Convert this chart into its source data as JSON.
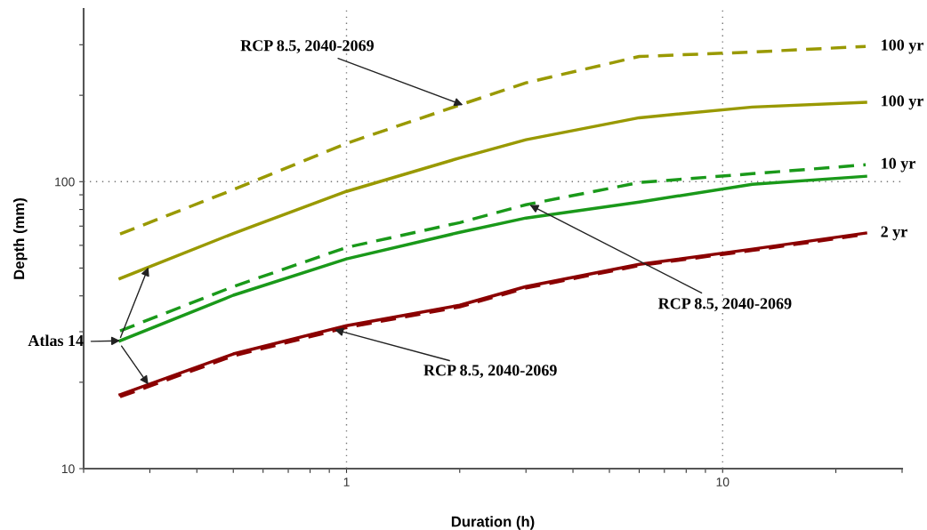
{
  "chart_data": {
    "type": "line",
    "xlabel": "Duration (h)",
    "ylabel": "Depth (mm)",
    "log": "xy",
    "grid": true,
    "x": [
      0.25,
      0.5,
      1,
      2,
      3,
      6,
      12,
      24
    ],
    "xlim": [
      0.2,
      30
    ],
    "xticks": [
      {
        "value": 0.2,
        "label": null
      },
      {
        "value": 0.3,
        "label": null
      },
      {
        "value": 0.4,
        "label": null
      },
      {
        "value": 0.5,
        "label": null
      },
      {
        "value": 0.6,
        "label": null
      },
      {
        "value": 0.7,
        "label": null
      },
      {
        "value": 0.8,
        "label": null
      },
      {
        "value": 0.9,
        "label": null
      },
      1,
      {
        "value": 2,
        "label": null
      },
      {
        "value": 3,
        "label": null
      },
      {
        "value": 4,
        "label": null
      },
      {
        "value": 5,
        "label": null
      },
      {
        "value": 6,
        "label": null
      },
      {
        "value": 7,
        "label": null
      },
      {
        "value": 8,
        "label": null
      },
      {
        "value": 9,
        "label": null
      },
      10,
      {
        "value": 20,
        "label": null
      },
      {
        "value": 30,
        "label": null
      }
    ],
    "ylim": [
      10,
      400
    ],
    "yticks": [
      10,
      {
        "value": 20,
        "label": null
      },
      {
        "value": 30,
        "label": null
      },
      {
        "value": 40,
        "label": null
      },
      {
        "value": 50,
        "label": null
      },
      {
        "value": 60,
        "label": null
      },
      {
        "value": 70,
        "label": null
      },
      {
        "value": 80,
        "label": null
      },
      {
        "value": 90,
        "label": null
      },
      100,
      {
        "value": 200,
        "label": null
      },
      {
        "value": 300,
        "label": null
      }
    ],
    "series": [
      {
        "name": "100 yr",
        "color": "#999900",
        "line_style": "dashed",
        "values": [
          65.7,
          93.8,
          136,
          185,
          221,
          273,
          283,
          296
        ]
      },
      {
        "name": "100 yr",
        "color": "#999900",
        "line_style": "solid",
        "values": [
          46.0,
          66,
          92.5,
          121,
          140,
          167,
          182,
          189
        ]
      },
      {
        "name": "10 yr",
        "color": "#1a991a",
        "line_style": "dashed",
        "values": [
          30.2,
          43.1,
          59.0,
          72.0,
          83.1,
          99.3,
          106.6,
          114.5
        ]
      },
      {
        "color": "#1a991a",
        "line_style": "solid",
        "values": [
          27.9,
          40.2,
          53.8,
          66.6,
          74.7,
          84.9,
          97.9,
          104.4
        ]
      },
      {
        "color": "#8b0000",
        "line_style": "dashed",
        "values": [
          17.8,
          24.7,
          31.0,
          36.6,
          42.6,
          51.0,
          57.6,
          65.5
        ]
      },
      {
        "name": "2 yr",
        "color": "#8b0000",
        "line_style": "solid",
        "values": [
          18.1,
          25.1,
          31.5,
          37.1,
          43.1,
          51.5,
          58.2,
          66.2
        ]
      }
    ],
    "annotations": [
      {
        "text": "RCP 8.5, 2040-2069",
        "x": 2.04,
        "y": 185
      },
      {
        "text": "RCP 8.5, 2040-2069",
        "x": 3.07,
        "y": 83
      },
      {
        "text": "RCP 8.5, 2040-2069",
        "x": 0.93,
        "y": 30.5
      },
      {
        "text": "Atlas 14",
        "x": 0.25,
        "y": 27.9
      }
    ]
  }
}
